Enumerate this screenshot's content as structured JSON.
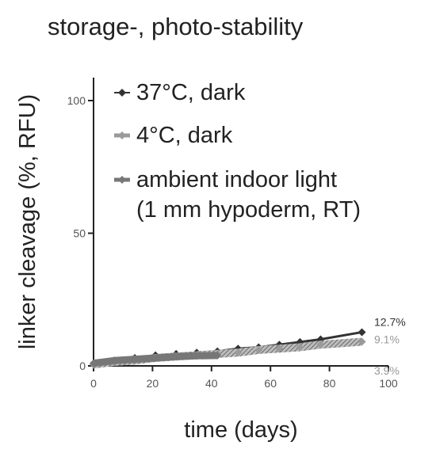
{
  "chart_data": {
    "type": "line",
    "title": "storage-, photo-stability",
    "xlabel": "time (days)",
    "ylabel": "linker cleavage (%, RFU)",
    "xlim": [
      0,
      100
    ],
    "ylim": [
      0,
      100
    ],
    "x_ticks": [
      "0",
      "20",
      "40",
      "60",
      "80",
      "100"
    ],
    "y_ticks": [
      "0",
      "50",
      "100"
    ],
    "grid": false,
    "legend_position": "top-left inside",
    "legend_lines": [
      [
        "37°C, dark"
      ],
      [
        "4°C, dark"
      ],
      [
        "ambient indoor light",
        "(1 mm hypoderm, RT)"
      ]
    ],
    "series": [
      {
        "name": "37°C, dark",
        "color": "#333333",
        "x": [
          0,
          7,
          14,
          21,
          28,
          35,
          42,
          49,
          56,
          63,
          70,
          77,
          91
        ],
        "y": [
          0.5,
          2,
          3,
          4,
          4.5,
          5,
          5.5,
          6.5,
          7,
          8,
          9,
          10,
          12.7
        ],
        "end_label": "12.7%"
      },
      {
        "name": "4°C, dark",
        "color": "#9a9a9a",
        "x": [
          0,
          7,
          14,
          21,
          28,
          35,
          42,
          49,
          56,
          63,
          70,
          77,
          91
        ],
        "y": [
          0.5,
          1.5,
          2,
          3,
          3.5,
          4,
          4.5,
          5,
          6,
          6.5,
          7,
          8,
          9.1
        ],
        "end_label": "9.1%"
      },
      {
        "name": "ambient indoor light (1 mm hypoderm, RT)",
        "color": "#777777",
        "x": [
          0,
          7,
          14,
          21,
          28,
          35,
          42
        ],
        "y": [
          1,
          2,
          2.5,
          3,
          3.5,
          3.8,
          3.9
        ],
        "end_label": "3.9%"
      }
    ]
  }
}
